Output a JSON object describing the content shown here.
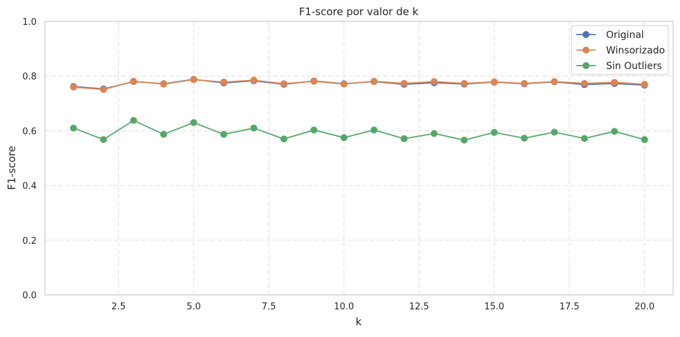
{
  "chart_data": {
    "type": "line",
    "title": "F1-score por valor de k",
    "xlabel": "k",
    "ylabel": "F1-score",
    "xlim": [
      0.05,
      20.95
    ],
    "ylim": [
      0.0,
      1.0
    ],
    "x_ticks": [
      2.5,
      5.0,
      7.5,
      10.0,
      12.5,
      15.0,
      17.5,
      20.0
    ],
    "x_tick_labels": [
      "2.5",
      "5.0",
      "7.5",
      "10.0",
      "12.5",
      "15.0",
      "17.5",
      "20.0"
    ],
    "y_ticks": [
      0.0,
      0.2,
      0.4,
      0.6,
      0.8,
      1.0
    ],
    "y_tick_labels": [
      "0.0",
      "0.2",
      "0.4",
      "0.6",
      "0.8",
      "1.0"
    ],
    "grid": true,
    "legend_position": "top-right",
    "x": [
      1,
      2,
      3,
      4,
      5,
      6,
      7,
      8,
      9,
      10,
      11,
      12,
      13,
      14,
      15,
      16,
      17,
      18,
      19,
      20
    ],
    "series": [
      {
        "name": "Original",
        "color": "#4c72b0",
        "values": [
          0.762,
          0.753,
          0.78,
          0.772,
          0.788,
          0.775,
          0.783,
          0.77,
          0.782,
          0.772,
          0.78,
          0.77,
          0.776,
          0.771,
          0.778,
          0.772,
          0.779,
          0.769,
          0.773,
          0.767
        ]
      },
      {
        "name": "Winsorizado",
        "color": "#dd8452",
        "values": [
          0.76,
          0.751,
          0.781,
          0.771,
          0.787,
          0.778,
          0.785,
          0.772,
          0.781,
          0.771,
          0.781,
          0.773,
          0.78,
          0.773,
          0.779,
          0.773,
          0.78,
          0.773,
          0.777,
          0.77
        ]
      },
      {
        "name": "Sin Outliers",
        "color": "#55a868",
        "values": [
          0.61,
          0.568,
          0.638,
          0.587,
          0.63,
          0.587,
          0.61,
          0.57,
          0.603,
          0.575,
          0.603,
          0.571,
          0.59,
          0.566,
          0.594,
          0.573,
          0.595,
          0.572,
          0.598,
          0.568
        ]
      }
    ]
  }
}
